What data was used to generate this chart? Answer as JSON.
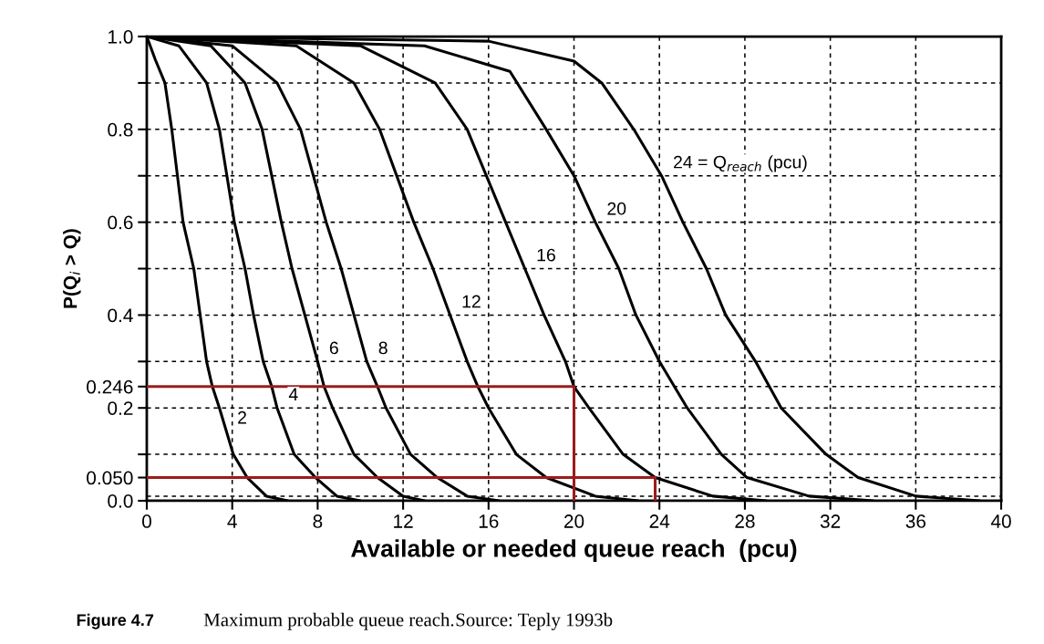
{
  "chart_data": {
    "type": "line",
    "xlabel": "Available or needed queue reach  (pcu)",
    "ylabel": "P(Q$_{i}$ > Q)",
    "xlim": [
      0,
      40
    ],
    "xticks": [
      0,
      4,
      8,
      12,
      16,
      20,
      24,
      28,
      32,
      36,
      40
    ],
    "ylim": [
      0,
      1.0
    ],
    "yticks": [
      {
        "value": 0,
        "label": "0.0"
      },
      {
        "value": 0.05,
        "label": "0.050"
      },
      {
        "value": 0.1,
        "label": null
      },
      {
        "value": 0.2,
        "label": "0.2"
      },
      {
        "value": 0.246,
        "label": "0.246"
      },
      {
        "value": 0.3,
        "label": null
      },
      {
        "value": 0.4,
        "label": "0.4"
      },
      {
        "value": 0.5,
        "label": null
      },
      {
        "value": 0.6,
        "label": "0.6"
      },
      {
        "value": 0.7,
        "label": null
      },
      {
        "value": 0.8,
        "label": "0.8"
      },
      {
        "value": 0.9,
        "label": null
      },
      {
        "value": 1.0,
        "label": "1.0"
      }
    ],
    "grid": true,
    "line_style": "solid",
    "ref_lines": [
      {
        "axis": "y",
        "value": 0.01,
        "line_style": "dashed",
        "color": "#000000"
      }
    ],
    "series": [
      {
        "color": "#000000",
        "x": [
          0,
          0.4,
          0.85,
          1.17,
          1.7,
          2.2,
          2.5,
          2.8,
          3.07,
          3.4,
          4.05,
          4.7,
          5.6,
          6.6
        ],
        "values": [
          1,
          0.95,
          0.9,
          0.8,
          0.6,
          0.5,
          0.4,
          0.3,
          0.246,
          0.2,
          0.1,
          0.05,
          0.01,
          0
        ]
      },
      {
        "color": "#000000",
        "x": [
          0,
          1.5,
          2.8,
          3.4,
          4.1,
          4.6,
          5.0,
          5.45,
          5.85,
          6.1,
          6.9,
          7.9,
          8.9,
          10
        ],
        "values": [
          1,
          0.98,
          0.9,
          0.8,
          0.6,
          0.5,
          0.4,
          0.3,
          0.246,
          0.2,
          0.1,
          0.05,
          0.01,
          0
        ]
      },
      {
        "color": "#000000",
        "x": [
          0,
          3,
          4.6,
          5.4,
          6.3,
          6.8,
          7.4,
          8.0,
          8.3,
          8.7,
          9.7,
          10.8,
          12,
          13
        ],
        "values": [
          1,
          0.98,
          0.9,
          0.8,
          0.6,
          0.5,
          0.4,
          0.3,
          0.246,
          0.2,
          0.1,
          0.05,
          0.01,
          0
        ]
      },
      {
        "color": "#000000",
        "x": [
          0,
          4,
          6.1,
          7.2,
          8.4,
          9.1,
          9.7,
          10.3,
          10.8,
          11.2,
          12.35,
          13.6,
          15,
          16.5
        ],
        "values": [
          1,
          0.98,
          0.9,
          0.8,
          0.6,
          0.5,
          0.4,
          0.3,
          0.246,
          0.2,
          0.1,
          0.05,
          0.01,
          0
        ]
      },
      {
        "color": "#000000",
        "x": [
          0,
          7,
          9.7,
          10.9,
          12.5,
          13.4,
          14.2,
          15.0,
          15.5,
          16.0,
          17.3,
          18.7,
          21,
          23
        ],
        "values": [
          1,
          0.98,
          0.9,
          0.8,
          0.6,
          0.5,
          0.4,
          0.3,
          0.246,
          0.2,
          0.1,
          0.05,
          0.01,
          0
        ]
      },
      {
        "color": "#000000",
        "x": [
          0,
          10,
          13.5,
          15,
          16.8,
          17.7,
          18.6,
          19.6,
          20,
          20.7,
          22.3,
          23.8,
          26.5,
          29
        ],
        "values": [
          1,
          0.98,
          0.9,
          0.8,
          0.6,
          0.5,
          0.4,
          0.3,
          0.246,
          0.2,
          0.1,
          0.05,
          0.01,
          0
        ]
      },
      {
        "color": "#000000",
        "x": [
          0,
          13,
          17,
          18.7,
          20,
          21,
          22.1,
          22.9,
          24,
          24.7,
          25.3,
          26.9,
          28.1,
          31,
          34
        ],
        "values": [
          1,
          0.98,
          0.925,
          0.8,
          0.7,
          0.6,
          0.5,
          0.4,
          0.3,
          0.246,
          0.2,
          0.1,
          0.05,
          0.01,
          0
        ]
      },
      {
        "color": "#000000",
        "x": [
          0,
          16,
          20,
          21.3,
          22.8,
          24.1,
          25.1,
          26.2,
          27.1,
          28.5,
          29.7,
          31.8,
          33.3,
          36,
          39
        ],
        "values": [
          1,
          0.99,
          0.947,
          0.9,
          0.8,
          0.7,
          0.6,
          0.5,
          0.4,
          0.3,
          0.2,
          0.1,
          0.05,
          0.01,
          0
        ]
      },
      {
        "color": "#9b1c1c",
        "x": [
          0,
          20,
          20
        ],
        "values": [
          0.246,
          0.246,
          0
        ]
      },
      {
        "color": "#9b1c1c",
        "x": [
          0,
          23.8,
          23.8
        ],
        "values": [
          0.05,
          0.05,
          0
        ]
      }
    ],
    "annotations": [
      {
        "text": "2",
        "x": 3.7,
        "y": 0.15
      },
      {
        "text": "4",
        "x": 6.1,
        "y": 0.2
      },
      {
        "text": "6",
        "x": 8.0,
        "y": 0.3
      },
      {
        "text": "8",
        "x": 10.3,
        "y": 0.3
      },
      {
        "text": "12",
        "x": 14.2,
        "y": 0.4
      },
      {
        "text": "16",
        "x": 17.7,
        "y": 0.5
      },
      {
        "text": "20",
        "x": 21.0,
        "y": 0.6
      },
      {
        "text": "24 = Q$_{reach}$ (pcu)",
        "x": 24.1,
        "y": 0.7
      },
      "Figure 4.7",
      "Maximum probable queue reach.",
      "Source: Teply 1993b"
    ]
  }
}
